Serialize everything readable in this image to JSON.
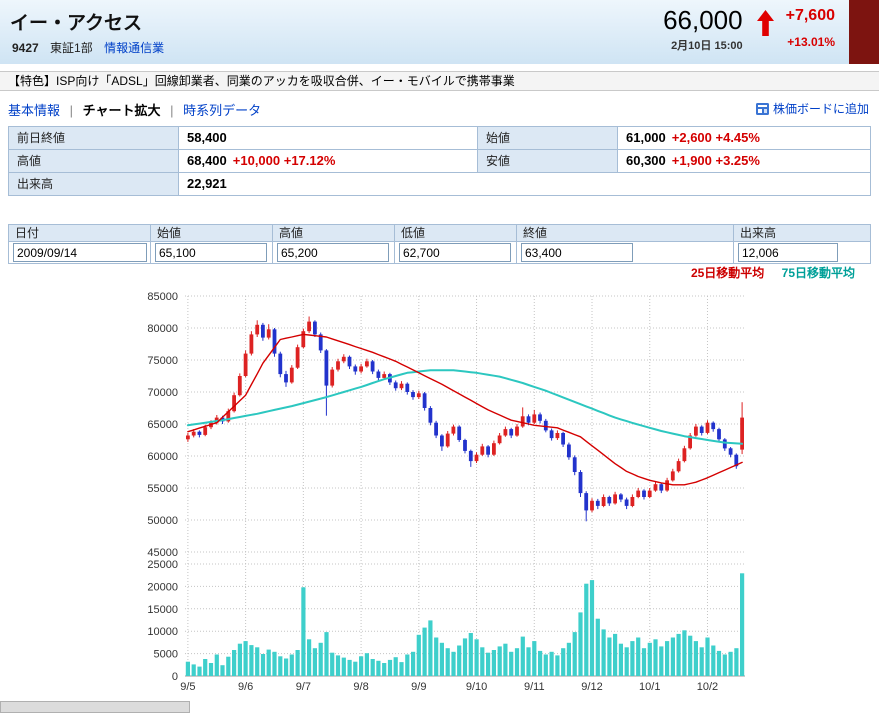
{
  "header": {
    "title": "イー・アクセス",
    "code": "9427",
    "market": "東証1部",
    "sector": "情報通信業",
    "price": "66,000",
    "timestamp": "2月10日 15:00",
    "change": "+7,600",
    "change_pct": "+13.01%"
  },
  "icons": {
    "up_arrow": "↑",
    "add_board": "▦"
  },
  "feature": {
    "text": "【特色】ISP向け「ADSL」回線卸業者、同業のアッカを吸収合併、イー・モバイルで携帯事業"
  },
  "tabs": [
    {
      "label": "基本情報",
      "active": false
    },
    {
      "label": "チャート拡大",
      "active": true
    },
    {
      "label": "時系列データ",
      "active": false
    }
  ],
  "board": {
    "label": "株価ボードに追加"
  },
  "summary": {
    "prev_close_label": "前日終値",
    "prev_close": "58,400",
    "open_label": "始値",
    "open": "61,000",
    "open_change": "+2,600 +4.45%",
    "high_label": "高値",
    "high": "68,400",
    "high_change": "+10,000 +17.12%",
    "low_label": "安値",
    "low": "60,300",
    "low_change": "+1,900 +3.25%",
    "volume_label": "出来高",
    "volume": "22,921"
  },
  "entry": {
    "headers": [
      "日付",
      "始値",
      "高値",
      "低値",
      "終値",
      "出来高"
    ],
    "values": [
      "2009/09/14",
      "65,100",
      "65,200",
      "62,700",
      "63,400",
      "12,006"
    ]
  },
  "legend": {
    "ma25": "25日移動平均",
    "ma75": "75日移動平均"
  },
  "chart_data": {
    "type": "candlestick+volume",
    "x_labels": [
      "9/5",
      "9/6",
      "9/7",
      "9/8",
      "9/9",
      "9/10",
      "9/11",
      "9/12",
      "10/1",
      "10/2"
    ],
    "label_every": 10,
    "price_axis": {
      "min": 45000,
      "max": 85000,
      "step": 5000
    },
    "volume_axis": {
      "min": 0,
      "max": 25000,
      "step": 5000
    },
    "colors": {
      "up": "#dd2222",
      "down": "#2233cc",
      "volume": "#3ecfcb",
      "grid": "#c4c4c4",
      "axis_text": "#333333"
    },
    "ohlc": [
      [
        62600,
        63600,
        62200,
        63200
      ],
      [
        63200,
        64200,
        62900,
        63800
      ],
      [
        63800,
        64000,
        62900,
        63300
      ],
      [
        63300,
        64900,
        63100,
        64500
      ],
      [
        64500,
        65600,
        64200,
        65200
      ],
      [
        65200,
        66400,
        64900,
        66000
      ],
      [
        66000,
        66300,
        65000,
        65400
      ],
      [
        65400,
        67400,
        65200,
        67000
      ],
      [
        67000,
        69900,
        66800,
        69500
      ],
      [
        69500,
        72900,
        69300,
        72500
      ],
      [
        72500,
        76500,
        72300,
        76000
      ],
      [
        76000,
        79500,
        75700,
        79000
      ],
      [
        79000,
        81200,
        78600,
        80500
      ],
      [
        80500,
        80800,
        78000,
        78500
      ],
      [
        78500,
        80600,
        78200,
        79800
      ],
      [
        79800,
        80000,
        75500,
        76000
      ],
      [
        76000,
        76300,
        72300,
        72800
      ],
      [
        72800,
        73300,
        70800,
        71500
      ],
      [
        71500,
        74200,
        71300,
        73800
      ],
      [
        73800,
        77400,
        73600,
        77000
      ],
      [
        77000,
        79900,
        76800,
        79500
      ],
      [
        79500,
        81800,
        79200,
        81000
      ],
      [
        81000,
        81200,
        78600,
        79000
      ],
      [
        79000,
        79300,
        76100,
        76500
      ],
      [
        76500,
        76700,
        66300,
        71000
      ],
      [
        71000,
        73900,
        70700,
        73500
      ],
      [
        73500,
        75200,
        73200,
        74800
      ],
      [
        74800,
        75900,
        74500,
        75500
      ],
      [
        75500,
        75700,
        73600,
        74000
      ],
      [
        74000,
        74300,
        72700,
        73200
      ],
      [
        73200,
        74400,
        72900,
        74000
      ],
      [
        74000,
        75200,
        73800,
        74800
      ],
      [
        74800,
        75000,
        72800,
        73200
      ],
      [
        73200,
        73500,
        71800,
        72200
      ],
      [
        72200,
        73200,
        71900,
        72800
      ],
      [
        72800,
        73000,
        71100,
        71500
      ],
      [
        71500,
        71800,
        70200,
        70600
      ],
      [
        70600,
        71700,
        70300,
        71300
      ],
      [
        71300,
        71500,
        69600,
        70000
      ],
      [
        70000,
        70300,
        68800,
        69200
      ],
      [
        69200,
        70200,
        68900,
        69800
      ],
      [
        69800,
        70000,
        67100,
        67500
      ],
      [
        67500,
        67800,
        64800,
        65200
      ],
      [
        65200,
        65500,
        62800,
        63200
      ],
      [
        63200,
        63400,
        60800,
        61500
      ],
      [
        61500,
        63900,
        61300,
        63500
      ],
      [
        63500,
        64900,
        63200,
        64600
      ],
      [
        64600,
        64800,
        62200,
        62500
      ],
      [
        62500,
        62700,
        60400,
        60800
      ],
      [
        60800,
        61000,
        58300,
        59200
      ],
      [
        59200,
        60600,
        58900,
        60200
      ],
      [
        60200,
        61900,
        60000,
        61500
      ],
      [
        61500,
        61700,
        59800,
        60200
      ],
      [
        60200,
        62400,
        60000,
        62000
      ],
      [
        62000,
        63600,
        61800,
        63200
      ],
      [
        63200,
        64600,
        63000,
        64200
      ],
      [
        64200,
        64400,
        62800,
        63200
      ],
      [
        63200,
        65000,
        63000,
        64600
      ],
      [
        64600,
        67600,
        64400,
        66200
      ],
      [
        66200,
        66500,
        64800,
        65200
      ],
      [
        65200,
        67200,
        65000,
        66500
      ],
      [
        66500,
        66800,
        65100,
        65500
      ],
      [
        65500,
        65800,
        63700,
        64000
      ],
      [
        64000,
        64300,
        62400,
        62800
      ],
      [
        62800,
        64000,
        62500,
        63600
      ],
      [
        63600,
        63800,
        61400,
        61800
      ],
      [
        61800,
        62100,
        59400,
        59800
      ],
      [
        59800,
        60100,
        57000,
        57500
      ],
      [
        57500,
        57800,
        53600,
        54200
      ],
      [
        54200,
        54500,
        49800,
        51500
      ],
      [
        51500,
        53400,
        51200,
        53000
      ],
      [
        53000,
        53300,
        51700,
        52200
      ],
      [
        52200,
        54000,
        52000,
        53600
      ],
      [
        53600,
        53800,
        52200,
        52600
      ],
      [
        52600,
        54400,
        52400,
        54000
      ],
      [
        54000,
        54200,
        52800,
        53200
      ],
      [
        53200,
        53500,
        51700,
        52200
      ],
      [
        52200,
        54000,
        52000,
        53600
      ],
      [
        53600,
        55000,
        53400,
        54600
      ],
      [
        54600,
        54800,
        53200,
        53600
      ],
      [
        53600,
        55000,
        53400,
        54600
      ],
      [
        54600,
        56000,
        54400,
        55600
      ],
      [
        55600,
        55800,
        54200,
        54600
      ],
      [
        54600,
        56600,
        54400,
        56200
      ],
      [
        56200,
        58000,
        56000,
        57600
      ],
      [
        57600,
        59600,
        57400,
        59200
      ],
      [
        59200,
        61600,
        59000,
        61200
      ],
      [
        61200,
        63600,
        61000,
        63200
      ],
      [
        63200,
        65000,
        63000,
        64600
      ],
      [
        64600,
        64800,
        63200,
        63600
      ],
      [
        63600,
        65600,
        63400,
        65200
      ],
      [
        65200,
        65400,
        63800,
        64200
      ],
      [
        64200,
        64400,
        62200,
        62600
      ],
      [
        62600,
        62800,
        60800,
        61200
      ],
      [
        61200,
        61400,
        59800,
        60200
      ],
      [
        60200,
        60400,
        58000,
        58400
      ],
      [
        61000,
        68400,
        60300,
        66000
      ]
    ],
    "volume": [
      3200,
      2600,
      2100,
      3800,
      2900,
      4800,
      2400,
      4300,
      5800,
      7200,
      7800,
      6900,
      6400,
      4900,
      5900,
      5400,
      4400,
      3900,
      4800,
      5800,
      19800,
      8200,
      6200,
      7400,
      9800,
      5200,
      4600,
      4100,
      3600,
      3200,
      4400,
      5100,
      3800,
      3400,
      2900,
      3600,
      4200,
      3100,
      4800,
      5400,
      9200,
      10800,
      12400,
      8600,
      7400,
      6200,
      5400,
      6800,
      8400,
      9600,
      8200,
      6400,
      5200,
      5800,
      6600,
      7200,
      5400,
      6200,
      8800,
      6400,
      7800,
      5600,
      4800,
      5400,
      4600,
      6200,
      7400,
      9800,
      14200,
      20600,
      21400,
      12800,
      10400,
      8600,
      9400,
      7200,
      6400,
      7800,
      8600,
      6200,
      7400,
      8200,
      6600,
      7800,
      8600,
      9400,
      10200,
      9000,
      7800,
      6400,
      8600,
      6800,
      5600,
      4800,
      5400,
      6200,
      22921
    ],
    "series": [
      {
        "name": "75日移動平均",
        "color": "#2cc7c0",
        "width": 2,
        "anchors": [
          [
            0,
            64800
          ],
          [
            6,
            65600
          ],
          [
            12,
            66600
          ],
          [
            18,
            67800
          ],
          [
            24,
            69200
          ],
          [
            30,
            70800
          ],
          [
            34,
            72000
          ],
          [
            38,
            73000
          ],
          [
            42,
            73400
          ],
          [
            46,
            73400
          ],
          [
            50,
            73000
          ],
          [
            54,
            72400
          ],
          [
            58,
            71400
          ],
          [
            62,
            70200
          ],
          [
            66,
            68800
          ],
          [
            70,
            67400
          ],
          [
            74,
            66000
          ],
          [
            78,
            64900
          ],
          [
            82,
            63900
          ],
          [
            86,
            63100
          ],
          [
            90,
            62500
          ],
          [
            93,
            62100
          ],
          [
            96,
            61900
          ]
        ]
      },
      {
        "name": "25日移動平均",
        "color": "#d40000",
        "width": 1.4,
        "anchors": [
          [
            0,
            63800
          ],
          [
            5,
            65200
          ],
          [
            10,
            69500
          ],
          [
            13,
            74500
          ],
          [
            16,
            78200
          ],
          [
            20,
            79000
          ],
          [
            24,
            78600
          ],
          [
            28,
            77400
          ],
          [
            32,
            76200
          ],
          [
            36,
            74800
          ],
          [
            40,
            73000
          ],
          [
            44,
            71200
          ],
          [
            48,
            69200
          ],
          [
            52,
            67200
          ],
          [
            56,
            65600
          ],
          [
            60,
            64800
          ],
          [
            64,
            64400
          ],
          [
            68,
            63000
          ],
          [
            70,
            61600
          ],
          [
            72,
            60200
          ],
          [
            74,
            58800
          ],
          [
            76,
            57600
          ],
          [
            78,
            56800
          ],
          [
            80,
            56200
          ],
          [
            82,
            55800
          ],
          [
            84,
            55500
          ],
          [
            86,
            55500
          ],
          [
            88,
            55900
          ],
          [
            90,
            56600
          ],
          [
            92,
            57400
          ],
          [
            94,
            58200
          ],
          [
            96,
            59000
          ]
        ]
      }
    ]
  }
}
